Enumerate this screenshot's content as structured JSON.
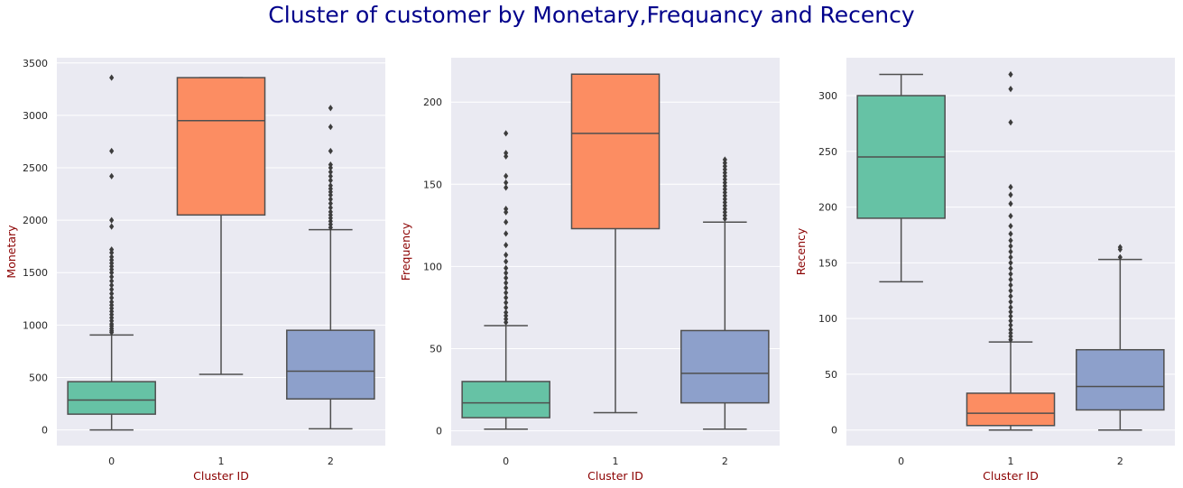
{
  "title": "Cluster of customer by Monetary,Frequancy and Recency",
  "chart_data": [
    {
      "type": "box",
      "xlabel": "Cluster ID",
      "ylabel": "Monetary",
      "categories": [
        "0",
        "1",
        "2"
      ],
      "ylim": [
        -150,
        3550
      ],
      "yticks": [
        0,
        500,
        1000,
        1500,
        2000,
        2500,
        3000,
        3500
      ],
      "grid": true,
      "boxes": [
        {
          "category": "0",
          "min": 0,
          "q1": 150,
          "median": 285,
          "q3": 460,
          "max": 905,
          "outliers": [
            930,
            945,
            965,
            990,
            1010,
            1040,
            1070,
            1100,
            1130,
            1160,
            1190,
            1220,
            1260,
            1300,
            1340,
            1380,
            1420,
            1460,
            1500,
            1530,
            1560,
            1590,
            1620,
            1650,
            1690,
            1720,
            1940,
            2000,
            2420,
            2660,
            3360
          ]
        },
        {
          "category": "1",
          "min": 530,
          "q1": 2050,
          "median": 2950,
          "q3": 3360,
          "max": 3360,
          "outliers": []
        },
        {
          "category": "2",
          "min": 10,
          "q1": 295,
          "median": 560,
          "q3": 950,
          "max": 1910,
          "outliers": [
            1930,
            1960,
            1990,
            2020,
            2050,
            2080,
            2120,
            2160,
            2200,
            2240,
            2270,
            2300,
            2330,
            2380,
            2420,
            2460,
            2500,
            2530,
            2660,
            2890,
            3070
          ]
        }
      ],
      "colors": [
        "#66c2a5",
        "#fc8d62",
        "#8da0cb"
      ]
    },
    {
      "type": "box",
      "xlabel": "Cluster ID",
      "ylabel": "Frequency",
      "categories": [
        "0",
        "1",
        "2"
      ],
      "ylim": [
        -9,
        227
      ],
      "yticks": [
        0,
        50,
        100,
        150,
        200
      ],
      "grid": true,
      "boxes": [
        {
          "category": "0",
          "min": 1,
          "q1": 8,
          "median": 17,
          "q3": 30,
          "max": 64,
          "outliers": [
            66,
            68,
            70,
            72,
            75,
            78,
            81,
            84,
            87,
            90,
            93,
            96,
            99,
            103,
            107,
            113,
            120,
            127,
            133,
            135,
            148,
            151,
            155,
            167,
            169,
            181
          ]
        },
        {
          "category": "1",
          "min": 11,
          "q1": 123,
          "median": 181,
          "q3": 217,
          "max": 217,
          "outliers": []
        },
        {
          "category": "2",
          "min": 1,
          "q1": 17,
          "median": 35,
          "q3": 61,
          "max": 127,
          "outliers": [
            129,
            131,
            133,
            135,
            137,
            139,
            141,
            143,
            145,
            147,
            149,
            151,
            153,
            155,
            157,
            159,
            161,
            163,
            165
          ]
        }
      ],
      "colors": [
        "#66c2a5",
        "#fc8d62",
        "#8da0cb"
      ]
    },
    {
      "type": "box",
      "xlabel": "Cluster ID",
      "ylabel": "Recency",
      "categories": [
        "0",
        "1",
        "2"
      ],
      "ylim": [
        -14,
        334
      ],
      "yticks": [
        0,
        50,
        100,
        150,
        200,
        250,
        300
      ],
      "grid": true,
      "boxes": [
        {
          "category": "0",
          "min": 133,
          "q1": 190,
          "median": 245,
          "q3": 300,
          "max": 319,
          "outliers": []
        },
        {
          "category": "1",
          "min": 0,
          "q1": 4,
          "median": 15,
          "q3": 33,
          "max": 79,
          "outliers": [
            81,
            84,
            87,
            90,
            94,
            98,
            102,
            106,
            110,
            115,
            120,
            125,
            130,
            135,
            140,
            145,
            150,
            155,
            160,
            165,
            170,
            176,
            183,
            192,
            203,
            211,
            218,
            276,
            306,
            319
          ]
        },
        {
          "category": "2",
          "min": 0,
          "q1": 18,
          "median": 39,
          "q3": 72,
          "max": 153,
          "outliers": [
            155,
            162,
            164
          ]
        }
      ],
      "colors": [
        "#66c2a5",
        "#fc8d62",
        "#8da0cb"
      ]
    }
  ]
}
